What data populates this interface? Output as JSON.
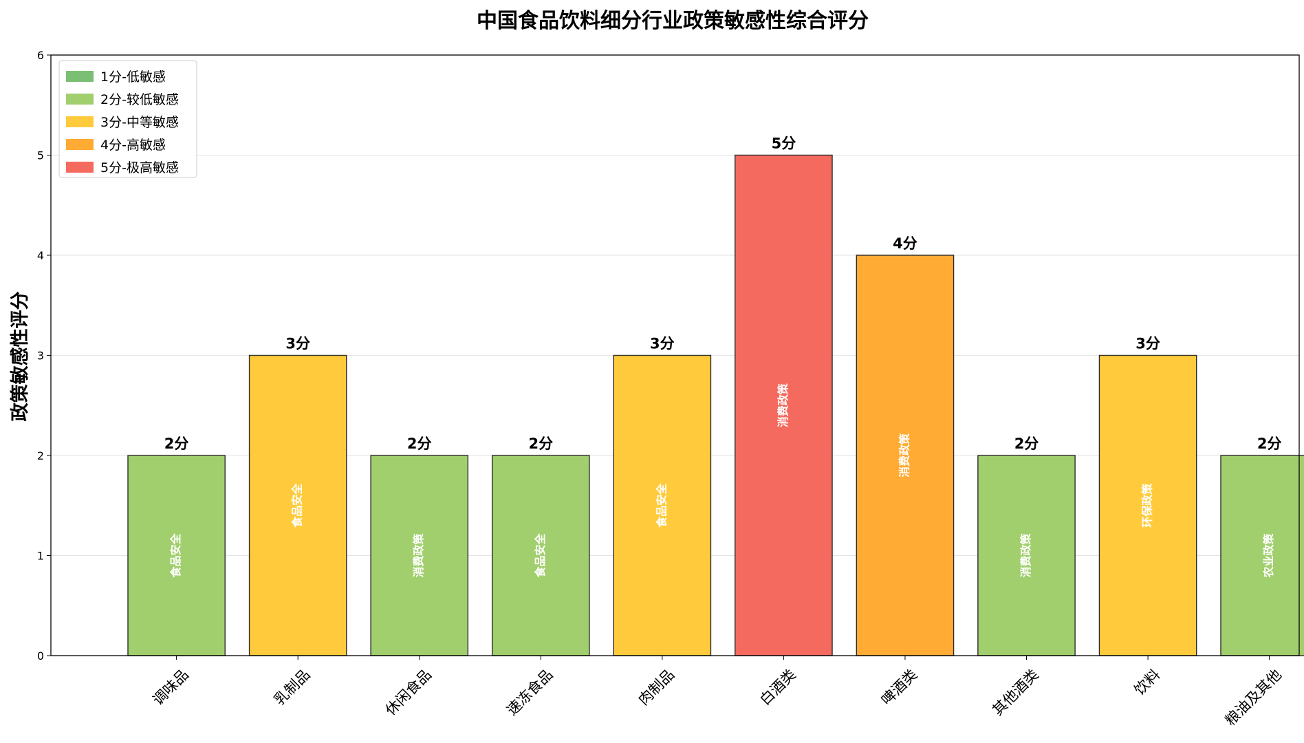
{
  "chart_data": {
    "type": "bar",
    "title": "中国食品饮料细分行业政策敏感性综合评分",
    "xlabel": "",
    "ylabel": "政策敏感性评分",
    "ylim": [
      0,
      6
    ],
    "yticks": [
      "0",
      "1",
      "2",
      "3",
      "4",
      "5",
      "6"
    ],
    "grid": "horizontal",
    "legend_position": "top-left",
    "categories": [
      "调味品",
      "乳制品",
      "休闲食品",
      "速冻食品",
      "肉制品",
      "白酒类",
      "啤酒类",
      "其他酒类",
      "饮料",
      "粮油及其他"
    ],
    "values": [
      2,
      3,
      2,
      2,
      3,
      5,
      4,
      2,
      3,
      2
    ],
    "value_labels": [
      "2分",
      "3分",
      "2分",
      "2分",
      "3分",
      "5分",
      "4分",
      "2分",
      "3分",
      "2分"
    ],
    "bar_labels": [
      "食品安全",
      "食品安全",
      "消费政策",
      "食品安全",
      "食品安全",
      "消费政策",
      "消费政策",
      "消费政策",
      "环保政策",
      "农业政策"
    ],
    "legend": [
      {
        "label": "1分-低敏感",
        "color": "#7abf73",
        "score": 1
      },
      {
        "label": "2分-较低敏感",
        "color": "#a2cf6e",
        "score": 2
      },
      {
        "label": "3分-中等敏感",
        "color": "#ffcb3c",
        "score": 3
      },
      {
        "label": "4分-高敏感",
        "color": "#ffab34",
        "score": 4
      },
      {
        "label": "5分-极高敏感",
        "color": "#f56a5e",
        "score": 5
      }
    ]
  }
}
